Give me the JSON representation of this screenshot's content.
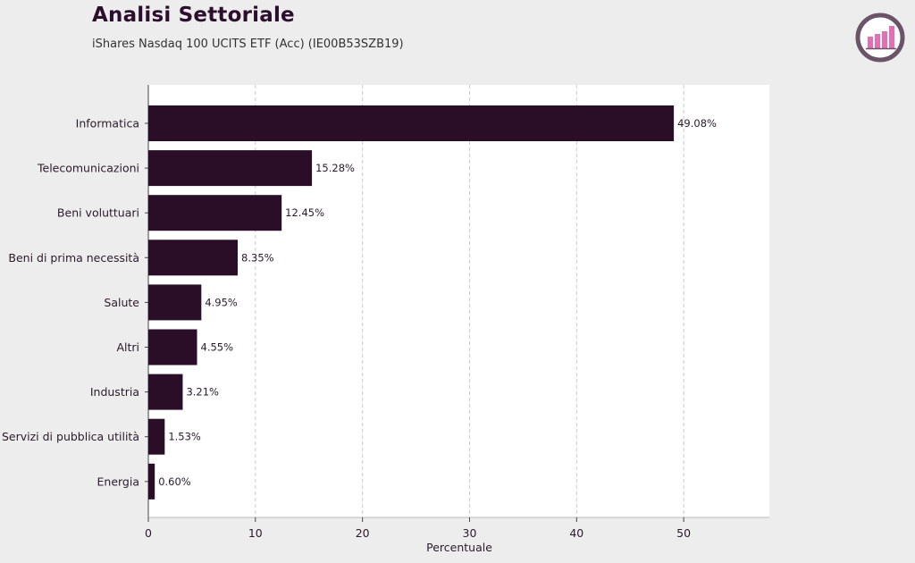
{
  "header": {
    "title": "Analisi Settoriale",
    "subtitle": "iShares Nasdaq 100 UCITS ETF (Acc) (IE00B53SZB19)"
  },
  "colors": {
    "bar": "#2a0e27",
    "background": "#eeeded",
    "plot_background": "#ffffff",
    "grid": "#cccccc",
    "logo_ring": "#6b5468",
    "logo_bars": "#e66fb4"
  },
  "logo": {
    "icon": "bar-chart-growth-icon"
  },
  "chart_data": {
    "type": "bar",
    "orientation": "horizontal",
    "categories": [
      "Informatica",
      "Telecomunicazioni",
      "Beni voluttuari",
      "Beni di prima necessità",
      "Salute",
      "Altri",
      "Industria",
      "Servizi di pubblica utilità",
      "Energia"
    ],
    "values": [
      49.08,
      15.28,
      12.45,
      8.35,
      4.95,
      4.55,
      3.21,
      1.53,
      0.6
    ],
    "value_labels": [
      "49.08%",
      "15.28%",
      "12.45%",
      "8.35%",
      "4.95%",
      "4.55%",
      "3.21%",
      "1.53%",
      "0.60%"
    ],
    "xlabel": "Percentuale",
    "ylabel": "",
    "xlim": [
      0,
      58
    ],
    "xticks": [
      0,
      10,
      20,
      30,
      40,
      50
    ],
    "grid": "vertical dashed",
    "legend": "none"
  }
}
